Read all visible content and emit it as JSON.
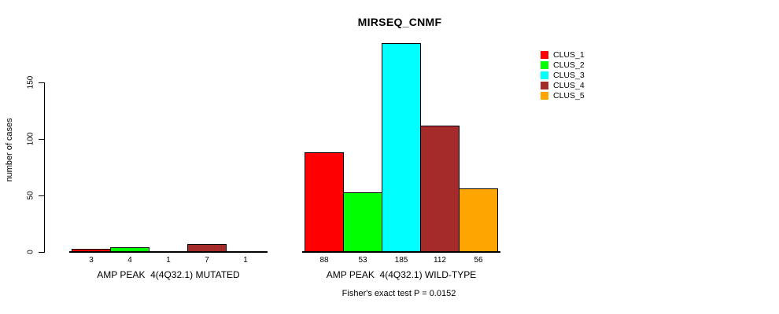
{
  "chart_data": {
    "type": "bar",
    "title": "MIRSEQ_CNMF",
    "ylabel": "number of cases",
    "ylim": [
      0,
      185
    ],
    "yticks": [
      0,
      50,
      100,
      150
    ],
    "grid": false,
    "legend_position": "top-right",
    "categories": [
      "AMP PEAK  4(4Q32.1) MUTATED",
      "AMP PEAK  4(4Q32.1) WILD-TYPE"
    ],
    "series": [
      {
        "name": "CLUS_1",
        "color": "#FF0000",
        "values": [
          3,
          88
        ]
      },
      {
        "name": "CLUS_2",
        "color": "#00FF00",
        "values": [
          4,
          53
        ]
      },
      {
        "name": "CLUS_3",
        "color": "#00FFFF",
        "values": [
          1,
          185
        ]
      },
      {
        "name": "CLUS_4",
        "color": "#A52A2A",
        "values": [
          7,
          112
        ]
      },
      {
        "name": "CLUS_5",
        "color": "#FFA500",
        "values": [
          1,
          56
        ]
      }
    ],
    "annotation": "Fisher's exact test P = 0.0152"
  },
  "colors": {
    "axis": "#000000",
    "text": "#000000",
    "background": "#FFFFFF"
  }
}
